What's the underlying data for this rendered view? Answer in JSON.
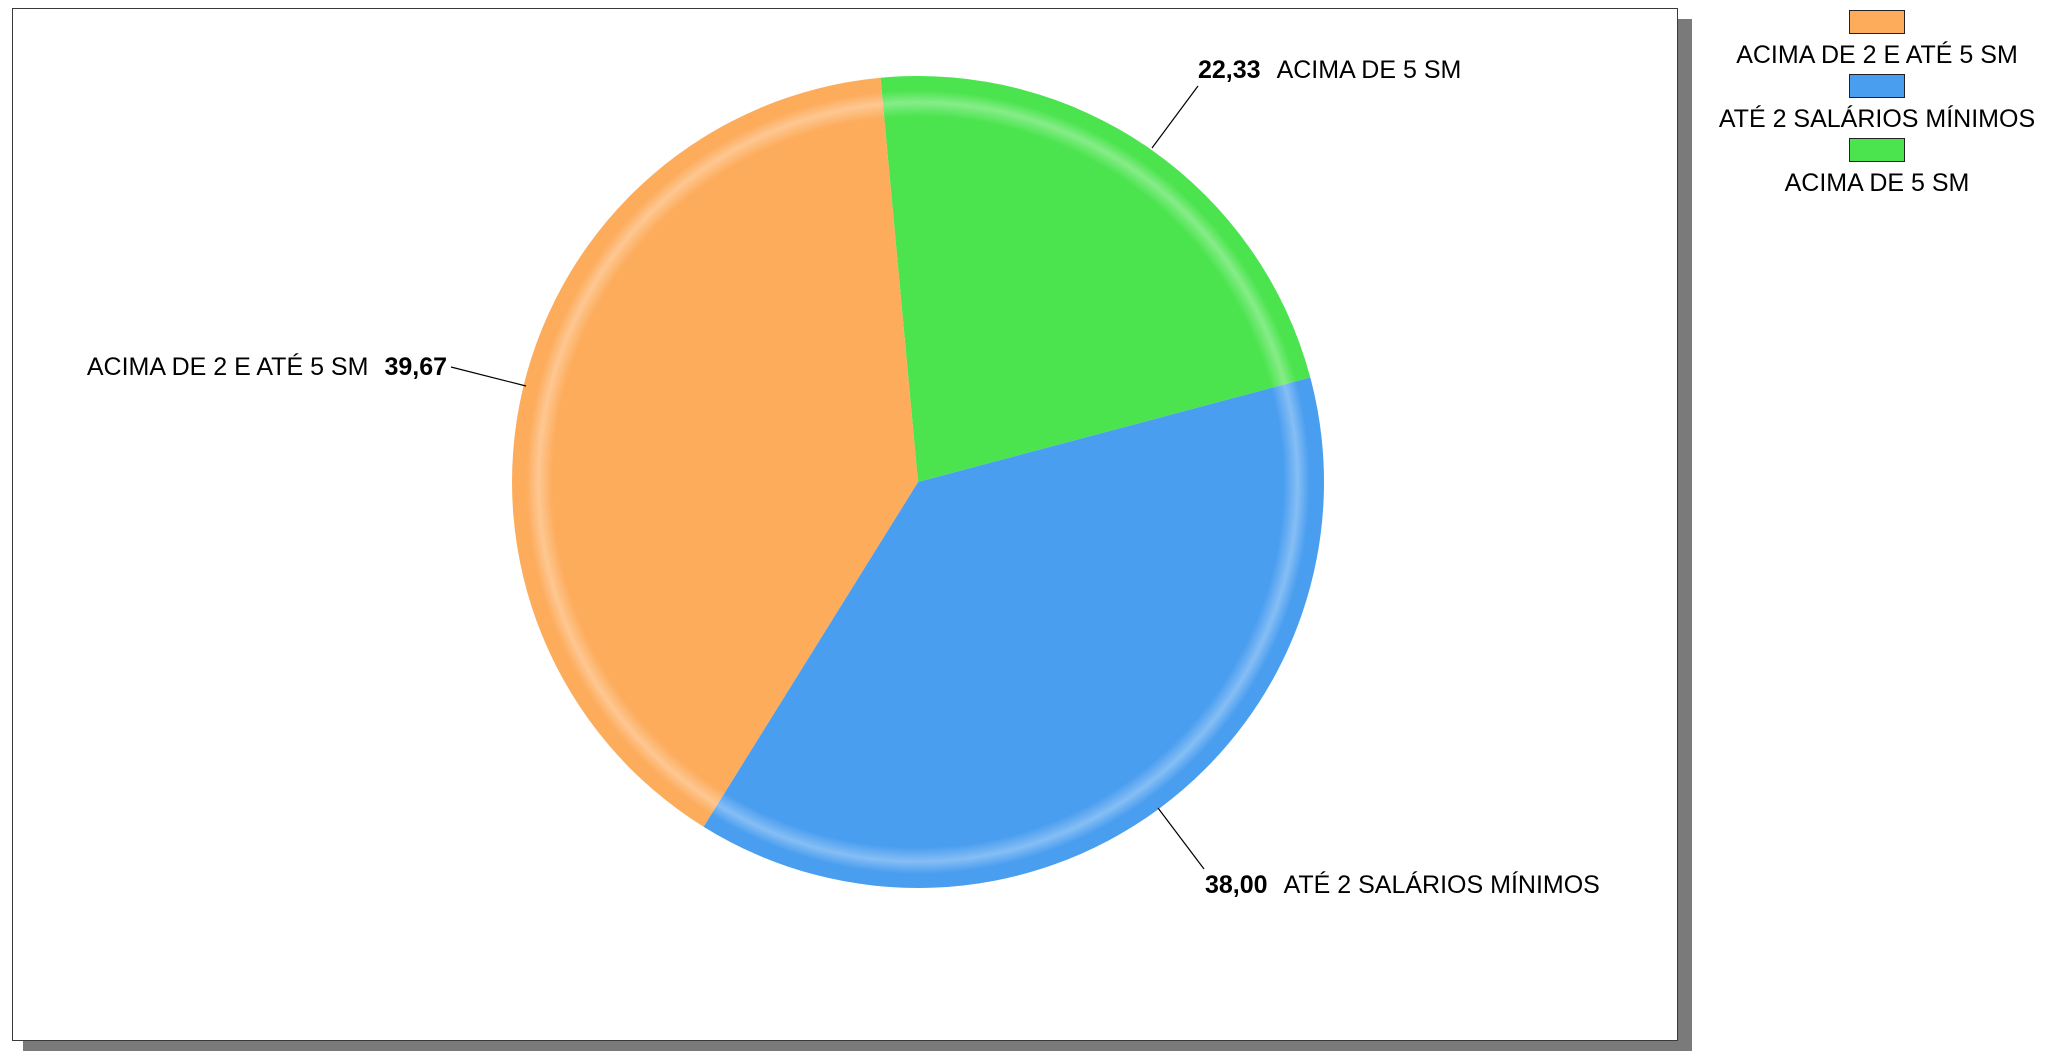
{
  "chart_data": {
    "type": "pie",
    "title": "",
    "categories": [
      "ACIMA DE 2 E ATÉ 5 SM",
      "ATÉ 2 SALÁRIOS MÍNIMOS",
      "ACIMA DE 5 SM"
    ],
    "values": [
      39.67,
      38.0,
      22.33
    ],
    "value_labels": [
      "39,67",
      "38,00",
      "22,33"
    ],
    "colors": [
      "#FDAC5C",
      "#4A9EF0",
      "#4BE44E"
    ],
    "legend_position": "top-right",
    "legend": [
      "ACIMA DE 2 E ATÉ 5 SM",
      "ATÉ 2 SALÁRIOS MÍNIMOS",
      "ACIMA DE 5 SM"
    ]
  }
}
